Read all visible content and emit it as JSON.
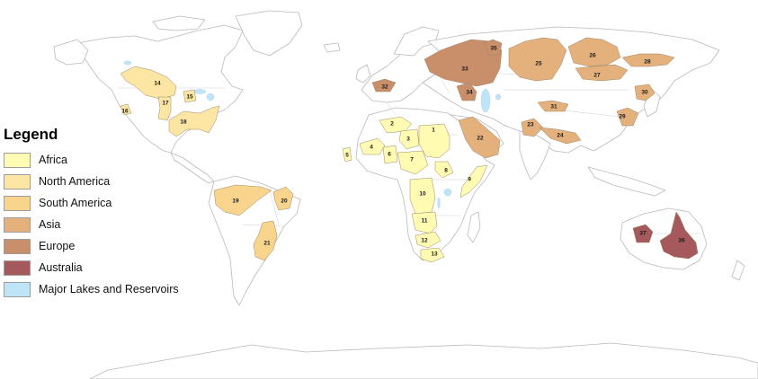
{
  "legend": {
    "title": "Legend",
    "items": [
      {
        "label": "Africa",
        "color": "#fffbb2"
      },
      {
        "label": "North America",
        "color": "#fde6a4"
      },
      {
        "label": "South America",
        "color": "#f9d48c"
      },
      {
        "label": "Asia",
        "color": "#e4b07c"
      },
      {
        "label": "Europe",
        "color": "#c98f6a"
      },
      {
        "label": "Australia",
        "color": "#a5595d"
      },
      {
        "label": "Major Lakes and Reservoirs",
        "color": "#bfe4f7"
      }
    ]
  },
  "aquifers": [
    {
      "id": "1",
      "region": "Africa"
    },
    {
      "id": "2",
      "region": "Africa"
    },
    {
      "id": "3",
      "region": "Africa"
    },
    {
      "id": "4",
      "region": "Africa"
    },
    {
      "id": "5",
      "region": "Africa"
    },
    {
      "id": "6",
      "region": "Africa"
    },
    {
      "id": "7",
      "region": "Africa"
    },
    {
      "id": "8",
      "region": "Africa"
    },
    {
      "id": "9",
      "region": "Africa"
    },
    {
      "id": "10",
      "region": "Africa"
    },
    {
      "id": "11",
      "region": "Africa"
    },
    {
      "id": "12",
      "region": "Africa"
    },
    {
      "id": "13",
      "region": "Africa"
    },
    {
      "id": "14",
      "region": "North America"
    },
    {
      "id": "15",
      "region": "North America"
    },
    {
      "id": "16",
      "region": "North America"
    },
    {
      "id": "17",
      "region": "North America"
    },
    {
      "id": "18",
      "region": "North America"
    },
    {
      "id": "19",
      "region": "South America"
    },
    {
      "id": "20",
      "region": "South America"
    },
    {
      "id": "21",
      "region": "South America"
    },
    {
      "id": "22",
      "region": "Asia"
    },
    {
      "id": "23",
      "region": "Asia"
    },
    {
      "id": "24",
      "region": "Asia"
    },
    {
      "id": "25",
      "region": "Asia"
    },
    {
      "id": "26",
      "region": "Asia"
    },
    {
      "id": "27",
      "region": "Asia"
    },
    {
      "id": "28",
      "region": "Asia"
    },
    {
      "id": "29",
      "region": "Asia"
    },
    {
      "id": "30",
      "region": "Asia"
    },
    {
      "id": "31",
      "region": "Asia"
    },
    {
      "id": "32",
      "region": "Europe"
    },
    {
      "id": "33",
      "region": "Europe"
    },
    {
      "id": "34",
      "region": "Europe"
    },
    {
      "id": "35",
      "region": "Europe"
    },
    {
      "id": "36",
      "region": "Australia"
    },
    {
      "id": "37",
      "region": "Australia"
    }
  ]
}
